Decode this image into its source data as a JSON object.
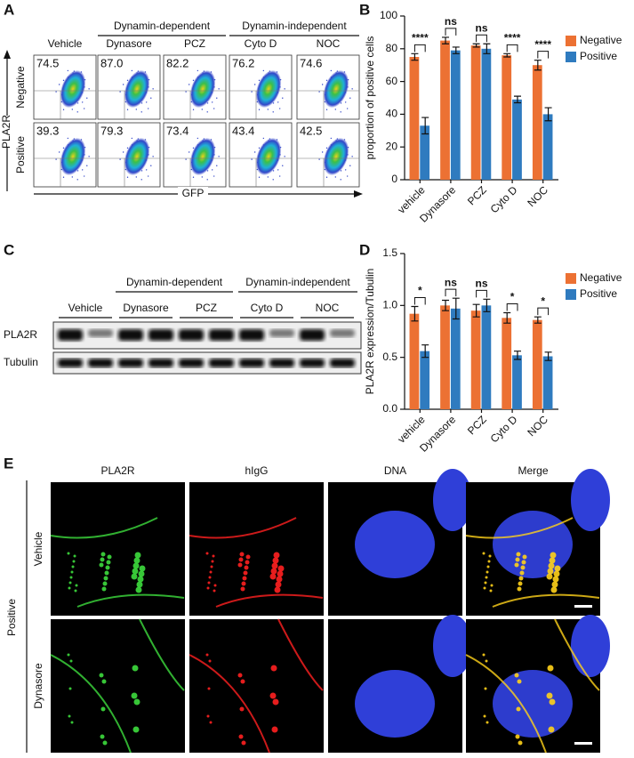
{
  "panel_labels": [
    "A",
    "B",
    "C",
    "D",
    "E"
  ],
  "panel_a": {
    "groups": [
      "Dynamin-dependent",
      "Dynamin-independent"
    ],
    "columns": [
      "Vehicle",
      "Dynasore",
      "PCZ",
      "Cyto D",
      "NOC"
    ],
    "rows": [
      {
        "label": "Negative",
        "values": [
          "74.5",
          "87.0",
          "82.2",
          "76.2",
          "74.6"
        ]
      },
      {
        "label": "Positive",
        "values": [
          "39.3",
          "79.3",
          "73.4",
          "43.4",
          "42.5"
        ]
      }
    ],
    "y_label": "PLA2R",
    "x_label": "GFP"
  },
  "panel_c": {
    "groups": [
      "Dynamin-dependent",
      "Dynamin-independent"
    ],
    "lanes": [
      "Vehicle",
      "Dynasore",
      "PCZ",
      "Cyto D",
      "NOC"
    ],
    "rows": [
      "PLA2R",
      "Tubulin"
    ]
  },
  "panel_e": {
    "side_label": "Positive",
    "columns": [
      "PLA2R",
      "hIgG",
      "DNA",
      "Merge"
    ],
    "rows": [
      "Vehicle",
      "Dynasore"
    ]
  },
  "chart_data": [
    {
      "type": "bar",
      "y_label": "proportion of positive cells",
      "categories": [
        "vehicle",
        "Dynasore",
        "PCZ",
        "Cyto D",
        "NOC"
      ],
      "series": [
        {
          "name": "Negative",
          "color": "#ec7133",
          "values": [
            75,
            85,
            82,
            76,
            70
          ],
          "errors": [
            2,
            2,
            1,
            1,
            3
          ]
        },
        {
          "name": "Positive",
          "color": "#2f7bbf",
          "values": [
            33,
            79,
            80,
            49,
            40
          ],
          "errors": [
            5,
            2,
            3,
            2,
            4
          ]
        }
      ],
      "significance": [
        "****",
        "ns",
        "ns",
        "****",
        "****"
      ],
      "ylim": [
        0,
        100
      ],
      "yticks": [
        0,
        20,
        40,
        60,
        80,
        100
      ],
      "legend": "right"
    },
    {
      "type": "bar",
      "y_label": "PLA2R expression/Tubulin",
      "categories": [
        "vehicle",
        "Dynasore",
        "PCZ",
        "Cyto D",
        "NOC"
      ],
      "series": [
        {
          "name": "Negative",
          "color": "#ec7133",
          "values": [
            0.92,
            1.0,
            0.95,
            0.88,
            0.86
          ],
          "errors": [
            0.07,
            0.05,
            0.06,
            0.05,
            0.03
          ]
        },
        {
          "name": "Positive",
          "color": "#2f7bbf",
          "values": [
            0.56,
            0.97,
            1.0,
            0.52,
            0.51
          ],
          "errors": [
            0.06,
            0.1,
            0.06,
            0.04,
            0.04
          ]
        }
      ],
      "significance": [
        "*",
        "ns",
        "ns",
        "*",
        "*"
      ],
      "ylim": [
        0,
        1.5
      ],
      "yticks": [
        {
          "value": 0,
          "label": "0.0"
        },
        0.5,
        {
          "value": 1,
          "label": "1.0"
        },
        1.5
      ],
      "legend": "right"
    }
  ]
}
